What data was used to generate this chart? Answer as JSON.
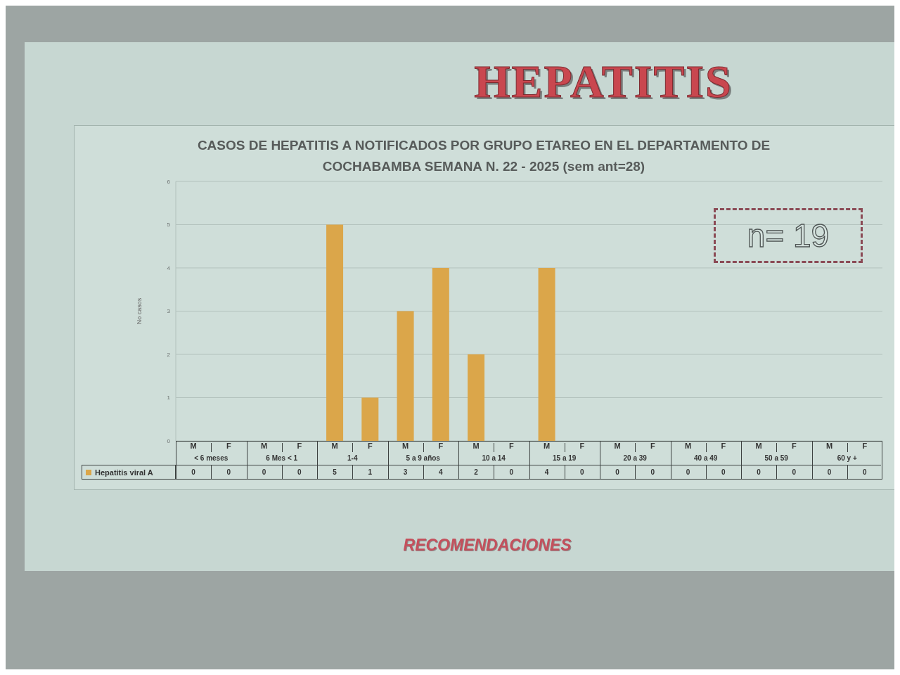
{
  "chart_data": {
    "type": "bar",
    "title": "HEPATITIS",
    "subtitle": "CASOS DE HEPATITIS A NOTIFICADOS POR GRUPO ETAREO EN EL DEPARTAMENTO DE COCHABAMBA SEMANA N. 22 - 2025 (sem ant=28)",
    "ylabel": "No casos",
    "categories": [
      "M",
      "F",
      "M",
      "F",
      "M",
      "F",
      "M",
      "F",
      "M",
      "F",
      "M",
      "F",
      "M",
      "F",
      "M",
      "F",
      "M",
      "F",
      "M",
      "F"
    ],
    "series": [
      {
        "name": "Hepatitis viral A",
        "color": "#dba64a",
        "values": [
          0,
          0,
          0,
          0,
          5,
          1,
          3,
          4,
          2,
          0,
          4,
          0,
          0,
          0,
          0,
          0,
          0,
          0,
          0,
          0
        ]
      }
    ],
    "ylim": [
      0,
      6
    ],
    "yticks": [
      0,
      1,
      2,
      3,
      4,
      5,
      6
    ],
    "grid": "y",
    "legend": "bottom",
    "data_labels": true,
    "annotations": [
      "< 6 meses",
      "6 Mes < 1",
      "1-4",
      "5 a 9 años",
      "10 a 14",
      "15 a 19",
      "20 a 39",
      "40 a 49",
      "50 a 59",
      "60 y +",
      "n= 19",
      "RECOMENDACIONES"
    ]
  }
}
